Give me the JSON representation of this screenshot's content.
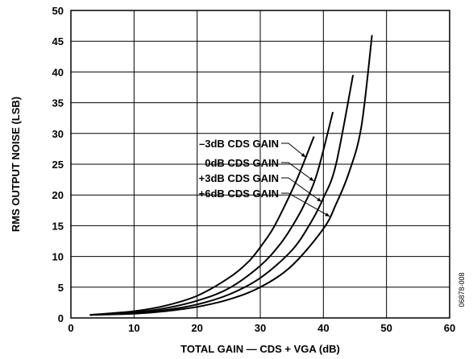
{
  "chart_data": {
    "type": "line",
    "title": "",
    "xlabel": "TOTAL GAIN — CDS + VGA (dB)",
    "ylabel": "RMS OUTPUT NOISE (LSB)",
    "xlim": [
      0,
      60
    ],
    "ylim": [
      0,
      50
    ],
    "xticks": [
      0,
      10,
      20,
      30,
      40,
      50,
      60
    ],
    "yticks": [
      0,
      5,
      10,
      15,
      20,
      25,
      30,
      35,
      40,
      45,
      50
    ],
    "grid": true,
    "line_color": "#000000",
    "series": [
      {
        "name": "–3dB CDS GAIN",
        "x": [
          3,
          10,
          15,
          20,
          25,
          28,
          30,
          32,
          34,
          36,
          38.5
        ],
        "y": [
          0.5,
          1.1,
          2.0,
          3.6,
          6.5,
          9.0,
          11.5,
          14.5,
          18.5,
          23.0,
          29.5
        ]
      },
      {
        "name": "0dB CDS GAIN",
        "x": [
          3,
          10,
          15,
          20,
          25,
          30,
          33,
          35,
          37,
          39,
          41.5
        ],
        "y": [
          0.5,
          0.9,
          1.6,
          2.8,
          4.8,
          8.5,
          11.8,
          14.8,
          18.5,
          23.5,
          33.5
        ]
      },
      {
        "name": "+3dB CDS GAIN",
        "x": [
          3,
          10,
          15,
          20,
          25,
          30,
          35,
          38,
          40,
          42,
          44.7
        ],
        "y": [
          0.5,
          0.8,
          1.3,
          2.2,
          3.8,
          6.5,
          11.0,
          15.5,
          19.5,
          25.0,
          39.5
        ]
      },
      {
        "name": "+6dB CDS GAIN",
        "x": [
          3,
          10,
          15,
          20,
          25,
          30,
          35,
          40,
          42,
          44,
          46,
          47.7
        ],
        "y": [
          0.5,
          0.7,
          1.1,
          1.8,
          3.0,
          5.0,
          8.5,
          14.5,
          18.5,
          23.5,
          31.0,
          46.0
        ]
      }
    ]
  },
  "side_note": "06878-008"
}
